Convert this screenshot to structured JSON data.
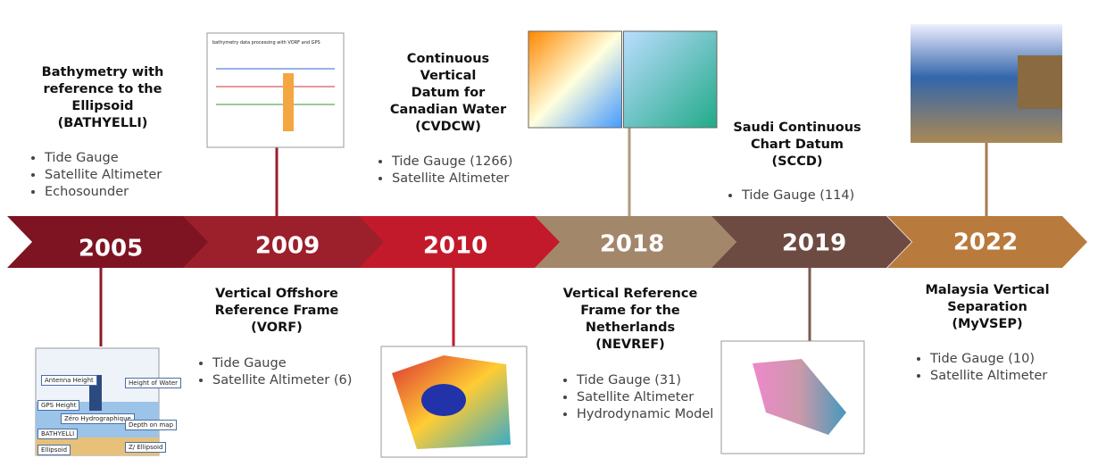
{
  "milestones": [
    {
      "year": "2005",
      "title": [
        "Bathymetry with",
        "reference to the",
        "Ellipsoid",
        "(BATHYELLI)"
      ],
      "bullets": [
        "Tide Gauge",
        "Satellite Altimeter",
        "Echosounder"
      ],
      "figure_labels": [
        "Antenna Height",
        "Height of Water",
        "GPS Height",
        "Zéro Hydrographique",
        "Depth on map",
        "BATHYELLI",
        "Z/ Ellipsoid",
        "Ellipsoid"
      ]
    },
    {
      "year": "2009",
      "title": [
        "Vertical Offshore",
        "Reference Frame",
        "(VORF)"
      ],
      "bullets": [
        "Tide Gauge",
        "Satellite Altimeter (6)"
      ],
      "figure_labels": [
        "bathymetry data processing with VORF and GPS"
      ]
    },
    {
      "year": "2010",
      "title": [
        "Continuous",
        "Vertical",
        "Datum for",
        "Canadian Water",
        "(CVDCW)"
      ],
      "bullets": [
        "Tide Gauge (1266)",
        "Satellite Altimeter"
      ]
    },
    {
      "year": "2018",
      "title": [
        "Vertical Reference",
        "Frame for the",
        "Netherlands",
        "(NEVREF)"
      ],
      "bullets": [
        "Tide Gauge (31)",
        "Satellite Altimeter",
        "Hydrodynamic Model"
      ]
    },
    {
      "year": "2019",
      "title": [
        "Saudi Continuous",
        "Chart Datum",
        "(SCCD)"
      ],
      "bullets": [
        "Tide Gauge (114)"
      ]
    },
    {
      "year": "2022",
      "title": [
        "Malaysia Vertical",
        "Separation",
        "(MyVSEP)"
      ],
      "bullets": [
        "Tide Gauge (10)",
        "Satellite Altimeter"
      ]
    }
  ]
}
